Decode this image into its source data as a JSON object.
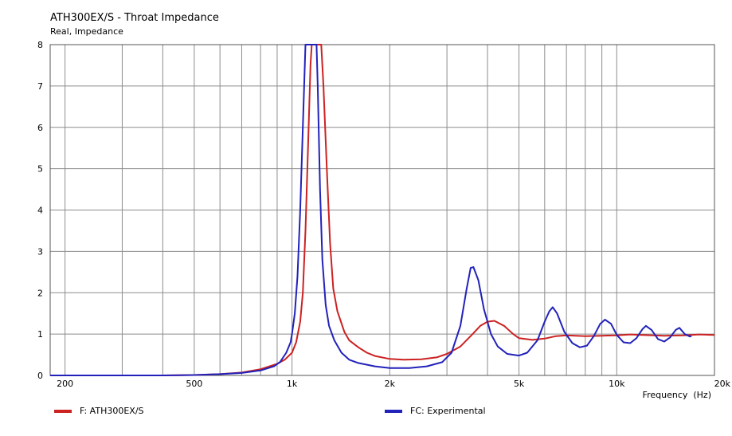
{
  "chart_data": {
    "type": "line",
    "title": "ATH300EX/S - Throat Impedance",
    "subtitle": "Real, Impedance",
    "xlabel": "Frequency  (Hz)",
    "xscale": "log",
    "xlim": [
      180,
      20000
    ],
    "ylim": [
      0,
      8
    ],
    "grid": true,
    "legend_position": "bottom",
    "x_ticks": [
      {
        "value": 200,
        "label": "200"
      },
      {
        "value": 500,
        "label": "500"
      },
      {
        "value": 1000,
        "label": "1k"
      },
      {
        "value": 2000,
        "label": "2k"
      },
      {
        "value": 5000,
        "label": "5k"
      },
      {
        "value": 10000,
        "label": "10k"
      },
      {
        "value": 20000,
        "label": "20k"
      }
    ],
    "y_ticks": [
      0,
      1,
      2,
      3,
      4,
      5,
      6,
      7,
      8
    ],
    "series": [
      {
        "name": "F: ATH300EX/S",
        "color": "#cc2222",
        "points": [
          [
            180,
            0
          ],
          [
            300,
            0
          ],
          [
            400,
            0
          ],
          [
            500,
            0.01
          ],
          [
            600,
            0.03
          ],
          [
            700,
            0.07
          ],
          [
            800,
            0.15
          ],
          [
            900,
            0.28
          ],
          [
            950,
            0.38
          ],
          [
            1000,
            0.55
          ],
          [
            1030,
            0.8
          ],
          [
            1060,
            1.3
          ],
          [
            1080,
            2.0
          ],
          [
            1100,
            3.5
          ],
          [
            1120,
            5.5
          ],
          [
            1140,
            7.5
          ],
          [
            1150,
            8
          ],
          [
            1230,
            8
          ],
          [
            1250,
            7.0
          ],
          [
            1280,
            5.0
          ],
          [
            1310,
            3.2
          ],
          [
            1340,
            2.1
          ],
          [
            1380,
            1.55
          ],
          [
            1450,
            1.05
          ],
          [
            1500,
            0.85
          ],
          [
            1600,
            0.68
          ],
          [
            1700,
            0.55
          ],
          [
            1800,
            0.47
          ],
          [
            2000,
            0.4
          ],
          [
            2200,
            0.38
          ],
          [
            2500,
            0.39
          ],
          [
            2800,
            0.44
          ],
          [
            3000,
            0.52
          ],
          [
            3300,
            0.7
          ],
          [
            3600,
            1.0
          ],
          [
            3800,
            1.2
          ],
          [
            4000,
            1.3
          ],
          [
            4200,
            1.32
          ],
          [
            4500,
            1.2
          ],
          [
            4800,
            1.0
          ],
          [
            5000,
            0.9
          ],
          [
            5500,
            0.86
          ],
          [
            6000,
            0.89
          ],
          [
            6500,
            0.95
          ],
          [
            7000,
            0.97
          ],
          [
            8000,
            0.95
          ],
          [
            9000,
            0.96
          ],
          [
            10000,
            0.97
          ],
          [
            11000,
            0.99
          ],
          [
            12000,
            0.98
          ],
          [
            14000,
            0.96
          ],
          [
            16000,
            0.97
          ],
          [
            18000,
            0.99
          ],
          [
            20000,
            0.98
          ]
        ]
      },
      {
        "name": "FC: Experimental",
        "color": "#2222bb",
        "points": [
          [
            180,
            0
          ],
          [
            300,
            0
          ],
          [
            400,
            0
          ],
          [
            500,
            0.01
          ],
          [
            600,
            0.03
          ],
          [
            700,
            0.06
          ],
          [
            800,
            0.12
          ],
          [
            880,
            0.22
          ],
          [
            920,
            0.33
          ],
          [
            960,
            0.55
          ],
          [
            990,
            0.8
          ],
          [
            1000,
            1.0
          ],
          [
            1020,
            1.5
          ],
          [
            1040,
            2.4
          ],
          [
            1060,
            4.0
          ],
          [
            1080,
            6.0
          ],
          [
            1100,
            8
          ],
          [
            1190,
            8
          ],
          [
            1200,
            7.0
          ],
          [
            1220,
            4.5
          ],
          [
            1240,
            2.8
          ],
          [
            1270,
            1.7
          ],
          [
            1300,
            1.2
          ],
          [
            1350,
            0.85
          ],
          [
            1420,
            0.55
          ],
          [
            1500,
            0.38
          ],
          [
            1600,
            0.3
          ],
          [
            1800,
            0.22
          ],
          [
            2000,
            0.18
          ],
          [
            2300,
            0.18
          ],
          [
            2600,
            0.22
          ],
          [
            2900,
            0.32
          ],
          [
            3100,
            0.55
          ],
          [
            3300,
            1.2
          ],
          [
            3450,
            2.1
          ],
          [
            3550,
            2.6
          ],
          [
            3620,
            2.62
          ],
          [
            3750,
            2.3
          ],
          [
            3900,
            1.6
          ],
          [
            4100,
            1.0
          ],
          [
            4300,
            0.7
          ],
          [
            4600,
            0.52
          ],
          [
            5000,
            0.48
          ],
          [
            5300,
            0.55
          ],
          [
            5700,
            0.85
          ],
          [
            6000,
            1.3
          ],
          [
            6200,
            1.55
          ],
          [
            6350,
            1.65
          ],
          [
            6550,
            1.5
          ],
          [
            6900,
            1.05
          ],
          [
            7300,
            0.78
          ],
          [
            7700,
            0.68
          ],
          [
            8100,
            0.72
          ],
          [
            8500,
            0.95
          ],
          [
            8900,
            1.25
          ],
          [
            9200,
            1.35
          ],
          [
            9600,
            1.25
          ],
          [
            10000,
            0.98
          ],
          [
            10500,
            0.8
          ],
          [
            11000,
            0.78
          ],
          [
            11500,
            0.9
          ],
          [
            12000,
            1.12
          ],
          [
            12300,
            1.2
          ],
          [
            12800,
            1.1
          ],
          [
            13400,
            0.88
          ],
          [
            14000,
            0.82
          ],
          [
            14600,
            0.92
          ],
          [
            15200,
            1.1
          ],
          [
            15600,
            1.15
          ],
          [
            16200,
            1.0
          ],
          [
            16800,
            0.94
          ],
          [
            17000,
            0.95
          ]
        ]
      }
    ]
  }
}
